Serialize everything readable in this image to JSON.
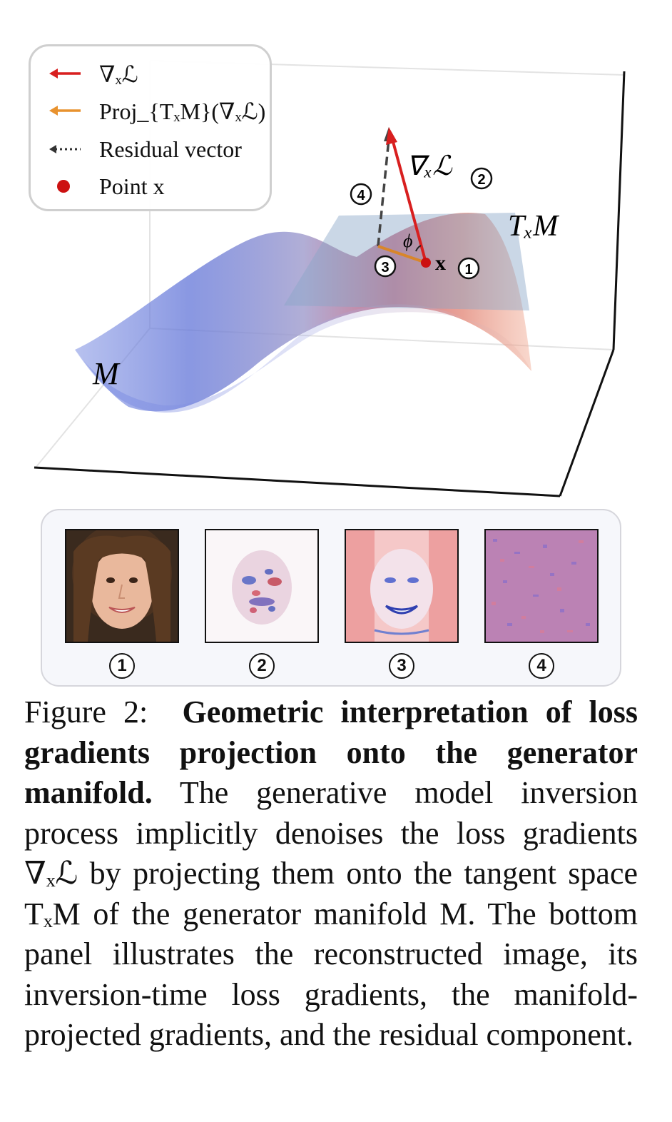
{
  "legend": {
    "items": [
      {
        "label": "∇ₓℒ",
        "symbol": "red-arrow",
        "color": "#d81f1f"
      },
      {
        "label": "Proj_{TₓM}(∇ₓℒ)",
        "symbol": "orange-arrow",
        "color": "#e8922e"
      },
      {
        "label": "Residual vector",
        "symbol": "dotted-arrow",
        "color": "#333333"
      },
      {
        "label": "Point x",
        "symbol": "red-dot",
        "color": "#cc1111"
      }
    ]
  },
  "plot_labels": {
    "grad": "∇ₓℒ",
    "tangent": "TₓM",
    "manifold": "M",
    "point": "x",
    "angle": "ϕ",
    "marker_1": "1",
    "marker_2": "2",
    "marker_3": "3",
    "marker_4": "4"
  },
  "panel": {
    "labels": [
      "1",
      "2",
      "3",
      "4"
    ]
  },
  "caption": {
    "label": "Figure 2:",
    "title": "Geometric interpretation of loss gradients projection onto the generator manifold.",
    "text": "The generative model inversion process implicitly denoises the loss gradients ∇ₓℒ by projecting them onto the tangent space TₓM of the generator manifold M. The bottom panel illustrates the reconstructed image, its inversion-time loss gradients, the manifold-projected gradients, and the residual component."
  },
  "colors": {
    "gradient_arrow": "#d81f1f",
    "projection_arrow": "#e8922e",
    "residual": "#444444",
    "point": "#cc1111",
    "manifold_low": "#5a6fd8",
    "manifold_high": "#e06a5a",
    "tangent_plane": "#8aa6c8"
  }
}
